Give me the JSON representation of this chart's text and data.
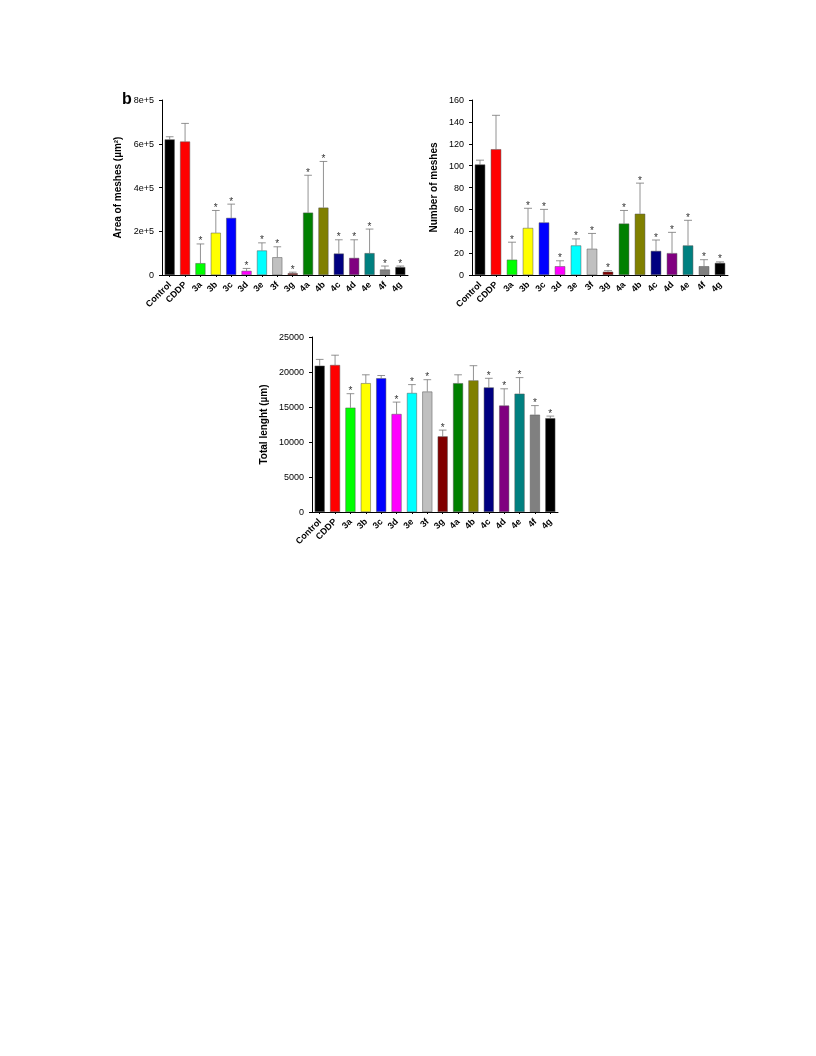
{
  "chart_data": [
    {
      "type": "bar",
      "ylabel": "Area of meshes (µm²)",
      "categories": [
        "Control",
        "CDDP",
        "3a",
        "3b",
        "3c",
        "3d",
        "3e",
        "3f",
        "3g",
        "4a",
        "4b",
        "4c",
        "4d",
        "4e",
        "4f",
        "4g"
      ],
      "values": [
        620000,
        610000,
        54000,
        193000,
        261000,
        19000,
        112000,
        81000,
        8000,
        285000,
        308000,
        98000,
        78000,
        100000,
        25000,
        36000
      ],
      "errors": [
        [
          620000,
          632000
        ],
        [
          610000,
          693000
        ],
        [
          54000,
          142000
        ],
        [
          193000,
          295000
        ],
        [
          261000,
          324000
        ],
        [
          19000,
          30000
        ],
        [
          112000,
          147000
        ],
        [
          81000,
          129000
        ],
        [
          8000,
          13000
        ],
        [
          285000,
          456000
        ],
        [
          308000,
          519000
        ],
        [
          98000,
          161000
        ],
        [
          78000,
          161000
        ],
        [
          100000,
          210000
        ],
        [
          25000,
          41000
        ],
        [
          36000,
          41000
        ]
      ],
      "colors": [
        "#000000",
        "#ff0000",
        "#00ff00",
        "#ffff00",
        "#0000ff",
        "#ff00ff",
        "#00ffff",
        "#c0c0c0",
        "#800000",
        "#008000",
        "#808000",
        "#000080",
        "#800080",
        "#008080",
        "#808080",
        "#000000"
      ],
      "ylim": [
        0,
        800000
      ],
      "yticks": [
        {
          "value": 0,
          "label": "0"
        },
        {
          "value": 200000,
          "label": "2e+5"
        },
        {
          "value": 400000,
          "label": "4e+5"
        },
        {
          "value": 600000,
          "label": "6e+5"
        },
        {
          "value": 800000,
          "label": "8e+5"
        }
      ],
      "grid": false,
      "annotations": [
        "b",
        {
          "text": "*",
          "x": "3a",
          "y": 142000
        },
        {
          "text": "*",
          "x": "3b",
          "y": 295000
        },
        {
          "text": "*",
          "x": "3c",
          "y": 324000
        },
        {
          "text": "*",
          "x": "3d",
          "y": 30000
        },
        {
          "text": "*",
          "x": "3e",
          "y": 147000
        },
        {
          "text": "*",
          "x": "3f",
          "y": 129000
        },
        {
          "text": "*",
          "x": "3g",
          "y": 13000
        },
        {
          "text": "*",
          "x": "4a",
          "y": 456000
        },
        {
          "text": "*",
          "x": "4b",
          "y": 519000
        },
        {
          "text": "*",
          "x": "4c",
          "y": 161000
        },
        {
          "text": "*",
          "x": "4d",
          "y": 161000
        },
        {
          "text": "*",
          "x": "4e",
          "y": 210000
        },
        {
          "text": "*",
          "x": "4f",
          "y": 41000
        },
        {
          "text": "*",
          "x": "4g",
          "y": 41000
        }
      ]
    },
    {
      "type": "bar",
      "ylabel": "Number of meshes",
      "categories": [
        "Control",
        "CDDP",
        "3a",
        "3b",
        "3c",
        "3d",
        "3e",
        "3f",
        "3g",
        "4a",
        "4b",
        "4c",
        "4d",
        "4e",
        "4f",
        "4g"
      ],
      "values": [
        101,
        115,
        14,
        43,
        48,
        8,
        27,
        24,
        3,
        47,
        56,
        22,
        20,
        27,
        8,
        11
      ],
      "errors": [
        [
          101,
          105
        ],
        [
          115,
          146
        ],
        [
          14,
          30
        ],
        [
          43,
          61
        ],
        [
          48,
          60
        ],
        [
          8,
          13
        ],
        [
          27,
          33
        ],
        [
          24,
          38
        ],
        [
          3,
          4
        ],
        [
          47,
          59
        ],
        [
          56,
          84
        ],
        [
          22,
          32
        ],
        [
          20,
          39
        ],
        [
          27,
          50
        ],
        [
          8,
          14
        ],
        [
          11,
          12
        ]
      ],
      "colors": [
        "#000000",
        "#ff0000",
        "#00ff00",
        "#ffff00",
        "#0000ff",
        "#ff00ff",
        "#00ffff",
        "#c0c0c0",
        "#800000",
        "#008000",
        "#808000",
        "#000080",
        "#800080",
        "#008080",
        "#808080",
        "#000000"
      ],
      "ylim": [
        0,
        160
      ],
      "yticks": [
        0,
        20,
        40,
        60,
        80,
        100,
        120,
        140,
        160
      ],
      "grid": false,
      "annotations": [
        {
          "text": "*",
          "x": "3a",
          "y": 30
        },
        {
          "text": "*",
          "x": "3b",
          "y": 61
        },
        {
          "text": "*",
          "x": "3c",
          "y": 60
        },
        {
          "text": "*",
          "x": "3d",
          "y": 13
        },
        {
          "text": "*",
          "x": "3e",
          "y": 33
        },
        {
          "text": "*",
          "x": "3f",
          "y": 38
        },
        {
          "text": "*",
          "x": "3g",
          "y": 4
        },
        {
          "text": "*",
          "x": "4a",
          "y": 59
        },
        {
          "text": "*",
          "x": "4b",
          "y": 84
        },
        {
          "text": "*",
          "x": "4c",
          "y": 32
        },
        {
          "text": "*",
          "x": "4d",
          "y": 39
        },
        {
          "text": "*",
          "x": "4e",
          "y": 50
        },
        {
          "text": "*",
          "x": "4f",
          "y": 14
        },
        {
          "text": "*",
          "x": "4g",
          "y": 12
        }
      ]
    },
    {
      "type": "bar",
      "ylabel": "Total lenght (µm)",
      "categories": [
        "Control",
        "CDDP",
        "3a",
        "3b",
        "3c",
        "3d",
        "3e",
        "3f",
        "3g",
        "4a",
        "4b",
        "4c",
        "4d",
        "4e",
        "4f",
        "4g"
      ],
      "values": [
        20900,
        21000,
        14900,
        18400,
        19100,
        14000,
        17000,
        17200,
        10800,
        18400,
        18800,
        17800,
        15200,
        16900,
        13900,
        13400
      ],
      "errors": [
        [
          20900,
          21800
        ],
        [
          21000,
          22400
        ],
        [
          14900,
          16900
        ],
        [
          18400,
          19600
        ],
        [
          19100,
          19500
        ],
        [
          14000,
          15700
        ],
        [
          17000,
          18200
        ],
        [
          17200,
          18900
        ],
        [
          10800,
          11700
        ],
        [
          18400,
          19600
        ],
        [
          18800,
          20900
        ],
        [
          17800,
          19100
        ],
        [
          15200,
          17600
        ],
        [
          16900,
          19200
        ],
        [
          13900,
          15200
        ],
        [
          13400,
          13700
        ]
      ],
      "colors": [
        "#000000",
        "#ff0000",
        "#00ff00",
        "#ffff00",
        "#0000ff",
        "#ff00ff",
        "#00ffff",
        "#c0c0c0",
        "#800000",
        "#008000",
        "#808000",
        "#000080",
        "#800080",
        "#008080",
        "#808080",
        "#000000"
      ],
      "ylim": [
        0,
        25000
      ],
      "yticks": [
        0,
        5000,
        10000,
        15000,
        20000,
        25000
      ],
      "grid": false,
      "annotations": [
        {
          "text": "*",
          "x": "3a",
          "y": 16900
        },
        {
          "text": "*",
          "x": "3d",
          "y": 15700
        },
        {
          "text": "*",
          "x": "3e",
          "y": 18200
        },
        {
          "text": "*",
          "x": "3f",
          "y": 18900
        },
        {
          "text": "*",
          "x": "3g",
          "y": 11700
        },
        {
          "text": "*",
          "x": "4c",
          "y": 19100
        },
        {
          "text": "*",
          "x": "4d",
          "y": 17600
        },
        {
          "text": "*",
          "x": "4e",
          "y": 19200
        },
        {
          "text": "*",
          "x": "4f",
          "y": 15200
        },
        {
          "text": "*",
          "x": "4g",
          "y": 13700
        }
      ]
    }
  ]
}
